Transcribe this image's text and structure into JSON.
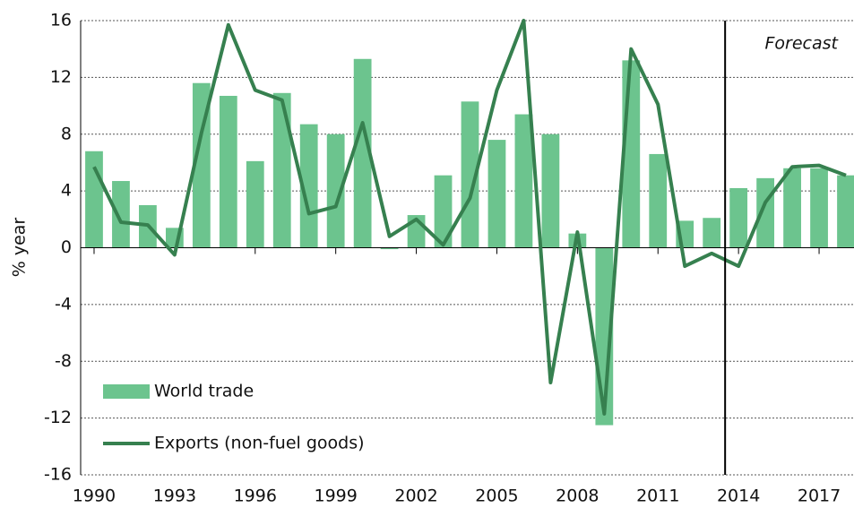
{
  "chart_data": {
    "type": "bar_line",
    "ylabel": "% year",
    "x": [
      1990,
      1991,
      1992,
      1993,
      1994,
      1995,
      1996,
      1997,
      1998,
      1999,
      2000,
      2001,
      2002,
      2003,
      2004,
      2005,
      2006,
      2007,
      2008,
      2009,
      2010,
      2011,
      2012,
      2013,
      2014,
      2015,
      2016,
      2017,
      2018
    ],
    "series": [
      {
        "name": "World trade",
        "type": "bar",
        "color": "#6cc48e",
        "values": [
          6.8,
          4.7,
          3.0,
          1.4,
          11.6,
          10.7,
          6.1,
          10.9,
          8.7,
          8.0,
          13.3,
          -0.1,
          2.3,
          5.1,
          10.3,
          7.6,
          9.4,
          8.0,
          1.0,
          -12.5,
          13.2,
          6.6,
          1.9,
          2.1,
          4.2,
          4.9,
          5.6,
          5.6,
          5.1
        ]
      },
      {
        "name": "Exports (non-fuel goods)",
        "type": "line",
        "color": "#36804f",
        "values": [
          5.7,
          1.8,
          1.6,
          -0.5,
          8.1,
          15.7,
          11.1,
          10.4,
          2.4,
          2.9,
          8.8,
          0.8,
          2.0,
          0.2,
          3.5,
          11.1,
          16.0,
          -9.5,
          1.1,
          -11.7,
          14.0,
          10.1,
          -1.3,
          -0.4,
          -1.3,
          3.2,
          5.7,
          5.8,
          5.1
        ]
      }
    ],
    "xlim": [
      1989.5,
      2018.3
    ],
    "xticks": [
      1990,
      1993,
      1996,
      1999,
      2002,
      2005,
      2008,
      2011,
      2014,
      2017
    ],
    "ylim": [
      -16,
      16
    ],
    "yticks": [
      -16,
      -12,
      -8,
      -4,
      0,
      4,
      8,
      12,
      16
    ],
    "grid": true,
    "legend": "lower left",
    "annotation": {
      "text": "Forecast",
      "x": 2013.5
    }
  }
}
